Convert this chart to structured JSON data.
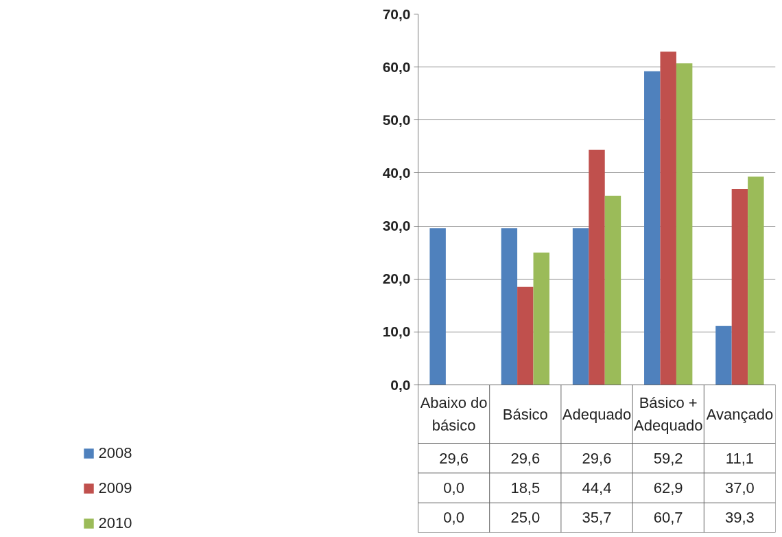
{
  "chart_data": {
    "type": "bar",
    "categories": [
      "Abaixo do\nbásico",
      "Básico",
      "Adequado",
      "Básico +\nAdequado",
      "Avançado"
    ],
    "series": [
      {
        "name": "2008",
        "color": "#4f81bd",
        "values": [
          29.6,
          29.6,
          29.6,
          59.2,
          11.1
        ],
        "value_labels": [
          "29,6",
          "29,6",
          "29,6",
          "59,2",
          "11,1"
        ]
      },
      {
        "name": "2009",
        "color": "#c0504d",
        "values": [
          0.0,
          18.5,
          44.4,
          62.9,
          37.0
        ],
        "value_labels": [
          "0,0",
          "18,5",
          "44,4",
          "62,9",
          "37,0"
        ]
      },
      {
        "name": "2010",
        "color": "#9bbb59",
        "values": [
          0.0,
          25.0,
          35.7,
          60.7,
          39.3
        ],
        "value_labels": [
          "0,0",
          "25,0",
          "35,7",
          "60,7",
          "39,3"
        ]
      }
    ],
    "ylim": [
      0,
      70
    ],
    "yticks": [
      {
        "value": 0,
        "label": "0,0"
      },
      {
        "value": 10,
        "label": "10,0"
      },
      {
        "value": 20,
        "label": "20,0"
      },
      {
        "value": 30,
        "label": "30,0"
      },
      {
        "value": 40,
        "label": "40,0"
      },
      {
        "value": 50,
        "label": "50,0"
      },
      {
        "value": 60,
        "label": "60,0"
      },
      {
        "value": 70,
        "label": "70,0"
      }
    ],
    "grid": "y",
    "legend": "bottom left"
  }
}
